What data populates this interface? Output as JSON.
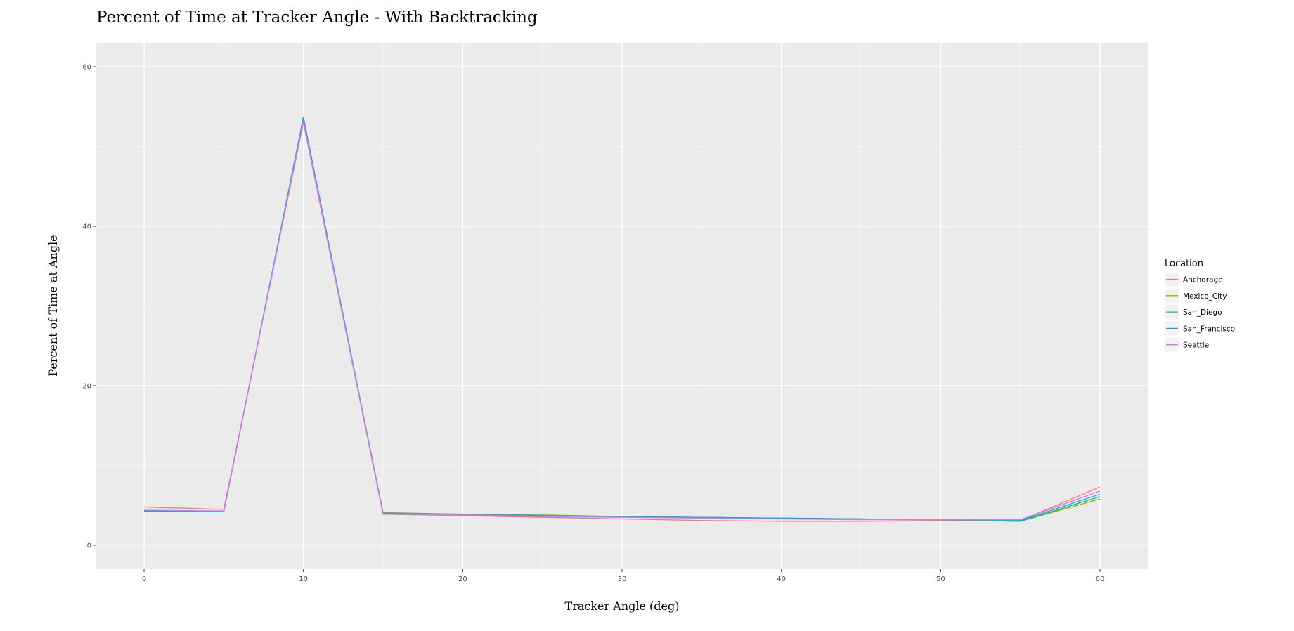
{
  "chart_data": {
    "type": "line",
    "title": "Percent of Time at Tracker Angle - With Backtracking",
    "xlabel": "Tracker Angle (deg)",
    "ylabel": "Percent of Time at Angle",
    "x": [
      0,
      5,
      10,
      15,
      20,
      25,
      30,
      35,
      40,
      45,
      50,
      55,
      60
    ],
    "xlim": [
      -3,
      63
    ],
    "ylim": [
      -3,
      63
    ],
    "xticks": [
      0,
      10,
      20,
      30,
      40,
      50,
      60
    ],
    "yticks": [
      0,
      20,
      40,
      60
    ],
    "grid": true,
    "legend": {
      "title": "Location",
      "position": "right"
    },
    "series": [
      {
        "name": "Anchorage",
        "color": "#F8766D",
        "values": [
          4.8,
          4.5,
          53.0,
          3.9,
          3.7,
          3.5,
          3.3,
          3.1,
          3.0,
          3.0,
          3.1,
          3.1,
          7.3
        ]
      },
      {
        "name": "Mexico_City",
        "color": "#A3A500",
        "values": [
          4.3,
          4.2,
          53.4,
          4.1,
          3.9,
          3.8,
          3.6,
          3.5,
          3.4,
          3.3,
          3.2,
          3.0,
          5.8
        ]
      },
      {
        "name": "San_Diego",
        "color": "#00BF7D",
        "values": [
          4.3,
          4.2,
          53.7,
          4.0,
          3.9,
          3.7,
          3.6,
          3.5,
          3.4,
          3.3,
          3.2,
          3.0,
          6.1
        ]
      },
      {
        "name": "San_Francisco",
        "color": "#00B0F6",
        "values": [
          4.3,
          4.2,
          53.5,
          4.0,
          3.8,
          3.7,
          3.6,
          3.5,
          3.4,
          3.3,
          3.2,
          3.1,
          6.4
        ]
      },
      {
        "name": "Seattle",
        "color": "#E76BF3",
        "values": [
          4.4,
          4.3,
          53.2,
          3.9,
          3.8,
          3.6,
          3.5,
          3.4,
          3.3,
          3.2,
          3.2,
          3.2,
          6.8
        ]
      }
    ]
  }
}
